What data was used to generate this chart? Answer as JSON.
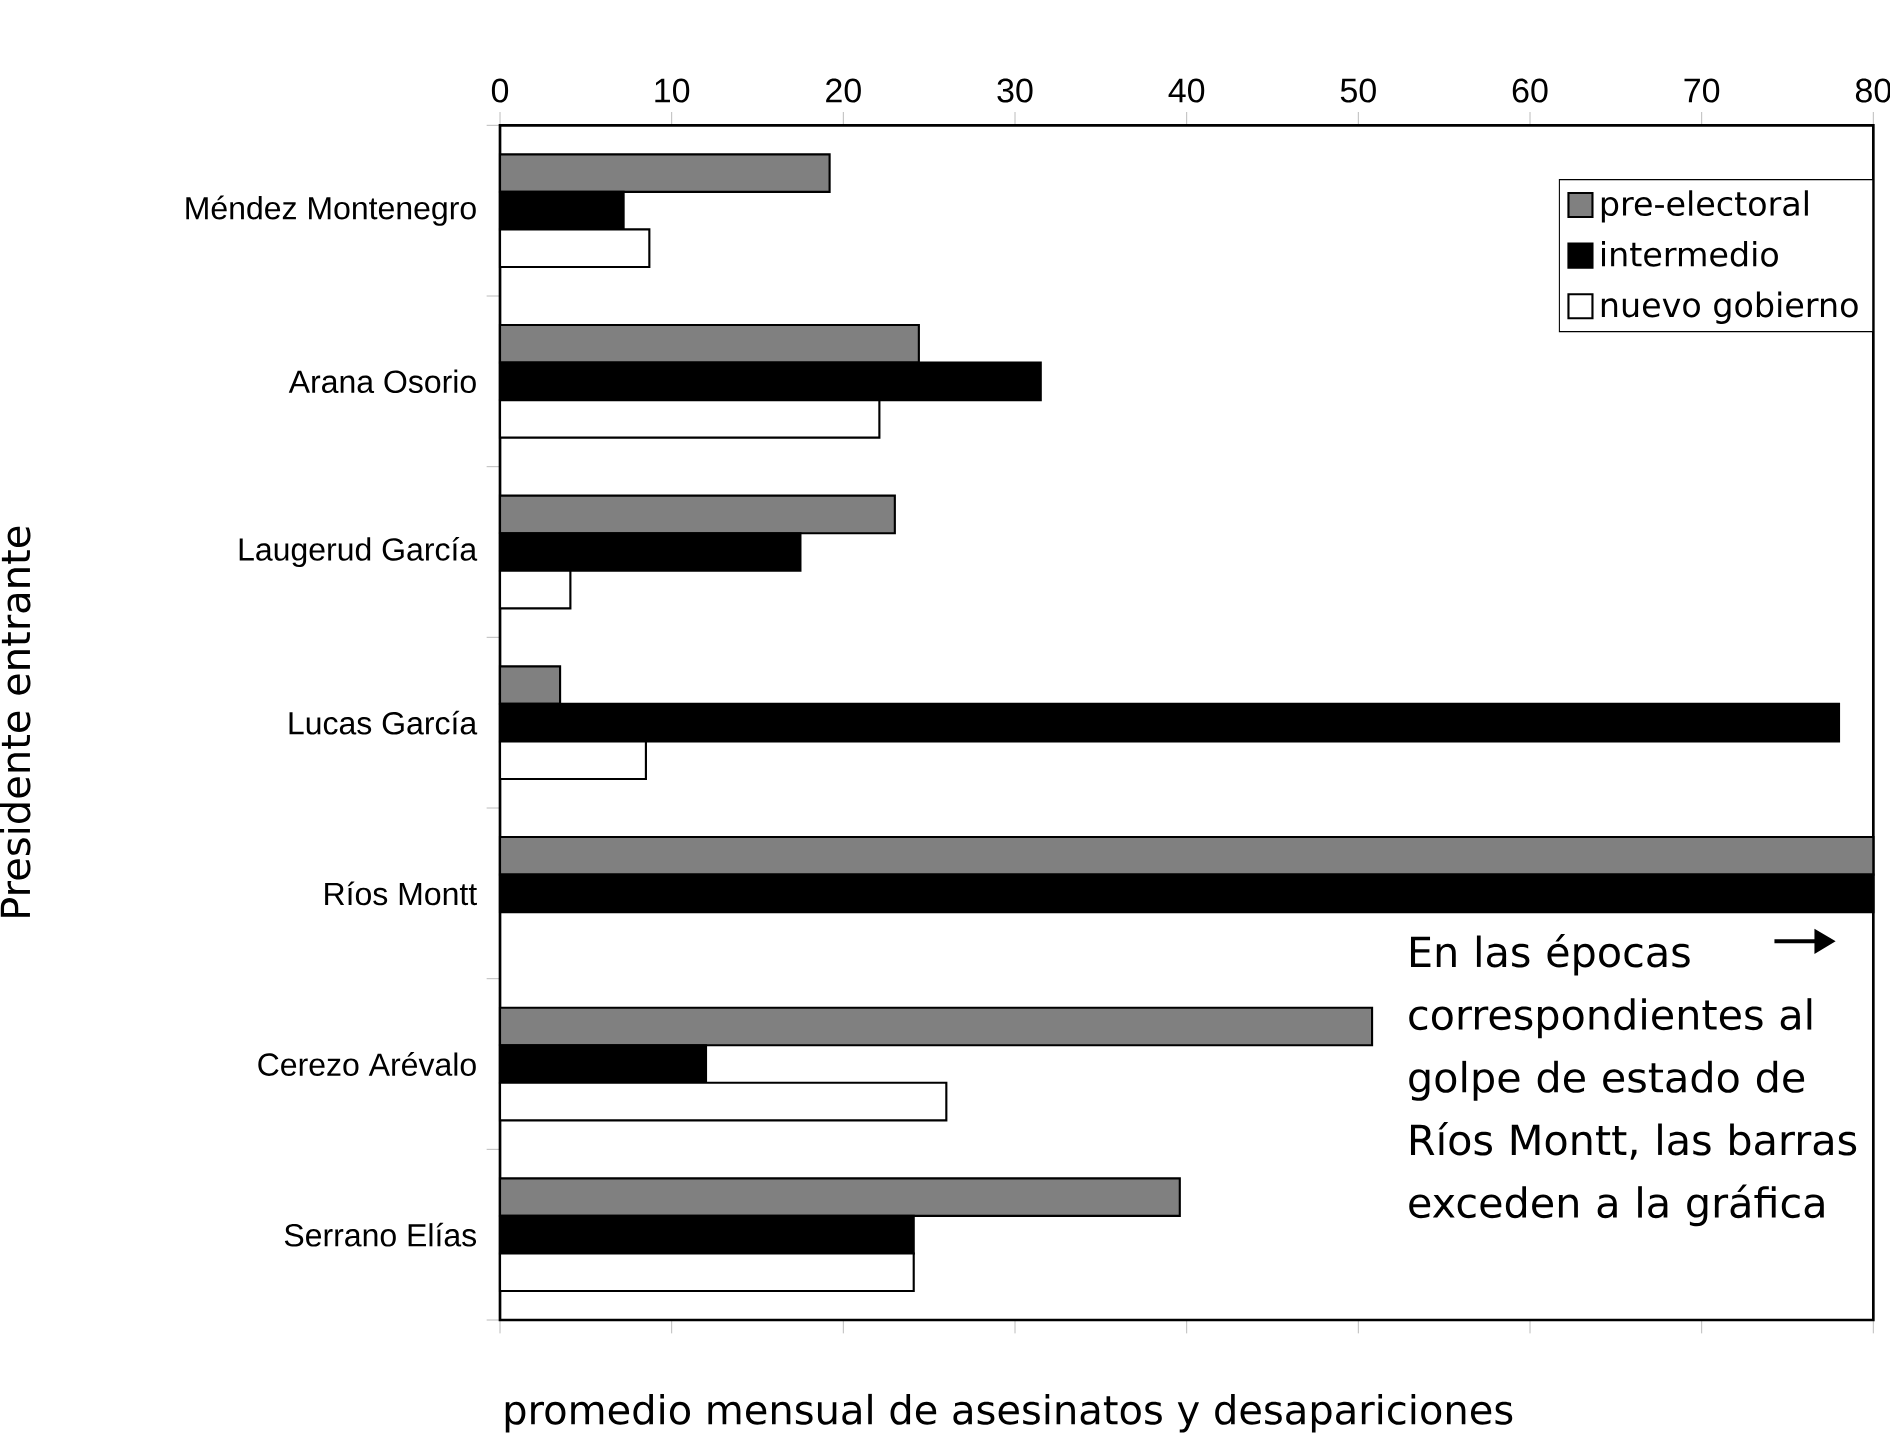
{
  "chart_data": {
    "type": "bar",
    "orientation": "horizontal",
    "xlabel": "promedio mensual de asesinatos y desapariciones",
    "ylabel": "Presidente entrante",
    "categories": [
      "Méndez Montenegro",
      "Arana Osorio",
      "Laugerud García",
      "Lucas García",
      "Ríos Montt",
      "Cerezo Arévalo",
      "Serrano Elías"
    ],
    "series": [
      {
        "name": "pre-electoral",
        "color": "#808080",
        "values": [
          19.2,
          24.4,
          23.0,
          3.5,
          80,
          50.8,
          39.6
        ]
      },
      {
        "name": "intermedio",
        "color": "#000000",
        "values": [
          7.2,
          31.5,
          17.5,
          78.0,
          80,
          12.0,
          24.1
        ]
      },
      {
        "name": "nuevo gobierno",
        "color": "#ffffff",
        "values": [
          8.7,
          22.1,
          4.1,
          8.5,
          null,
          26.0,
          24.1
        ]
      }
    ],
    "xlim": [
      0,
      80
    ],
    "xticks": [
      0,
      10,
      20,
      30,
      40,
      50,
      60,
      70,
      80
    ],
    "legend": "top right",
    "annotations": [
      "En las épocas correspondientes al golpe de estado de Ríos Montt, las barras exceden a la gráfica"
    ]
  }
}
